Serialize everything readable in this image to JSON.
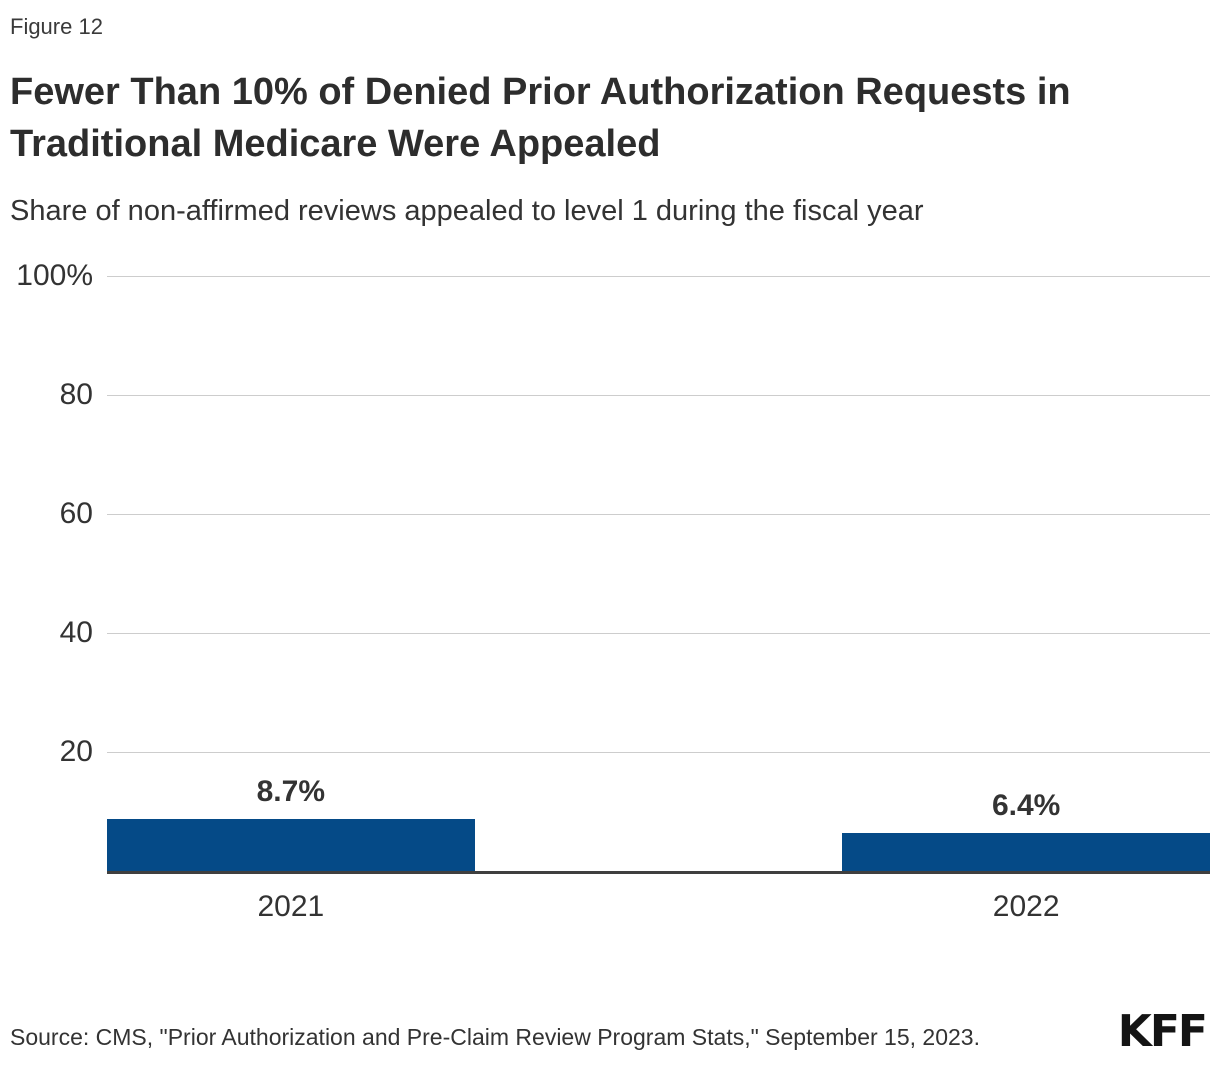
{
  "figure_label": "Figure 12",
  "title": "Fewer Than 10% of Denied Prior Authorization Requests in Traditional Medicare Were Appealed",
  "subtitle": "Share of non-affirmed reviews appealed to level 1 during the fiscal year",
  "source": "Source: CMS, \"Prior Authorization and Pre-Claim Review Program Stats,\" September 15, 2023.",
  "logo_text": "KFF",
  "colors": {
    "bar": "#054a87",
    "axis_line": "#3f3f3f",
    "gridline": "#cdcdcd",
    "text": "#333333"
  },
  "chart_data": {
    "type": "bar",
    "title": "Fewer Than 10% of Denied Prior Authorization Requests in Traditional Medicare Were Appealed",
    "subtitle": "Share of non-affirmed reviews appealed to level 1 during the fiscal year",
    "categories": [
      "2021",
      "2022"
    ],
    "values": [
      8.7,
      6.4
    ],
    "value_labels": [
      "8.7%",
      "6.4%"
    ],
    "xlabel": "",
    "ylabel": "",
    "ylim": [
      0,
      100
    ],
    "yticks": [
      20,
      40,
      60,
      80,
      100
    ],
    "ytick_labels": [
      "20",
      "40",
      "60",
      "80",
      "100%"
    ],
    "grid": true,
    "legend": false,
    "bar_color": "#054a87"
  }
}
